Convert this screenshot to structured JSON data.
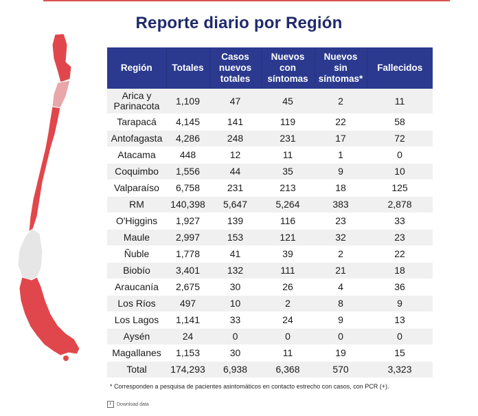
{
  "title": "Reporte diario por Región",
  "table": {
    "headers": {
      "region": "Región",
      "totales": "Totales",
      "casos_nuevos_totales": "Casos nuevos totales",
      "nuevos_con_sintomas": "Nuevos con síntomas",
      "nuevos_sin_sintomas": "Nuevos sin síntomas*",
      "fallecidos": "Fallecidos"
    },
    "rows": [
      {
        "region": "Arica y Parinacota",
        "totales": "1,109",
        "casos_nuevos_totales": "47",
        "nuevos_con_sintomas": "45",
        "nuevos_sin_sintomas": "2",
        "fallecidos": "11"
      },
      {
        "region": "Tarapacá",
        "totales": "4,145",
        "casos_nuevos_totales": "141",
        "nuevos_con_sintomas": "119",
        "nuevos_sin_sintomas": "22",
        "fallecidos": "58"
      },
      {
        "region": "Antofagasta",
        "totales": "4,286",
        "casos_nuevos_totales": "248",
        "nuevos_con_sintomas": "231",
        "nuevos_sin_sintomas": "17",
        "fallecidos": "72"
      },
      {
        "region": "Atacama",
        "totales": "448",
        "casos_nuevos_totales": "12",
        "nuevos_con_sintomas": "11",
        "nuevos_sin_sintomas": "1",
        "fallecidos": "0"
      },
      {
        "region": "Coquimbo",
        "totales": "1,556",
        "casos_nuevos_totales": "44",
        "nuevos_con_sintomas": "35",
        "nuevos_sin_sintomas": "9",
        "fallecidos": "10"
      },
      {
        "region": "Valparaíso",
        "totales": "6,758",
        "casos_nuevos_totales": "231",
        "nuevos_con_sintomas": "213",
        "nuevos_sin_sintomas": "18",
        "fallecidos": "125"
      },
      {
        "region": "RM",
        "totales": "140,398",
        "casos_nuevos_totales": "5,647",
        "nuevos_con_sintomas": "5,264",
        "nuevos_sin_sintomas": "383",
        "fallecidos": "2,878"
      },
      {
        "region": "O'Higgins",
        "totales": "1,927",
        "casos_nuevos_totales": "139",
        "nuevos_con_sintomas": "116",
        "nuevos_sin_sintomas": "23",
        "fallecidos": "33"
      },
      {
        "region": "Maule",
        "totales": "2,997",
        "casos_nuevos_totales": "153",
        "nuevos_con_sintomas": "121",
        "nuevos_sin_sintomas": "32",
        "fallecidos": "23"
      },
      {
        "region": "Ñuble",
        "totales": "1,778",
        "casos_nuevos_totales": "41",
        "nuevos_con_sintomas": "39",
        "nuevos_sin_sintomas": "2",
        "fallecidos": "22"
      },
      {
        "region": "Biobío",
        "totales": "3,401",
        "casos_nuevos_totales": "132",
        "nuevos_con_sintomas": "111",
        "nuevos_sin_sintomas": "21",
        "fallecidos": "18"
      },
      {
        "region": "Araucanía",
        "totales": "2,675",
        "casos_nuevos_totales": "30",
        "nuevos_con_sintomas": "26",
        "nuevos_sin_sintomas": "4",
        "fallecidos": "36"
      },
      {
        "region": "Los Ríos",
        "totales": "497",
        "casos_nuevos_totales": "10",
        "nuevos_con_sintomas": "2",
        "nuevos_sin_sintomas": "8",
        "fallecidos": "9"
      },
      {
        "region": "Los Lagos",
        "totales": "1,141",
        "casos_nuevos_totales": "33",
        "nuevos_con_sintomas": "24",
        "nuevos_sin_sintomas": "9",
        "fallecidos": "13"
      },
      {
        "region": "Aysén",
        "totales": "24",
        "casos_nuevos_totales": "0",
        "nuevos_con_sintomas": "0",
        "nuevos_sin_sintomas": "0",
        "fallecidos": "0"
      },
      {
        "region": "Magallanes",
        "totales": "1,153",
        "casos_nuevos_totales": "30",
        "nuevos_con_sintomas": "11",
        "nuevos_sin_sintomas": "19",
        "fallecidos": "15"
      }
    ],
    "total_row": {
      "region": "Total",
      "totales": "174,293",
      "casos_nuevos_totales": "6,938",
      "nuevos_con_sintomas": "6,368",
      "nuevos_sin_sintomas": "570",
      "fallecidos": "3,323"
    }
  },
  "footnote": "* Corresponden a pesquisa de pacientes asintomáticos en contacto estrecho con casos, con PCR (+).",
  "download_label": "Download data",
  "map": {
    "icon": "chile-regions-map-icon",
    "colors": {
      "highlight": "#e0474c",
      "light": "#e8a7a9",
      "neutral": "#e6e6e6",
      "border": "#ffffff"
    }
  },
  "colors": {
    "header_bg": "#2b3a8f",
    "title": "#1f2a6b",
    "row_alt": "#f0f0f0"
  }
}
